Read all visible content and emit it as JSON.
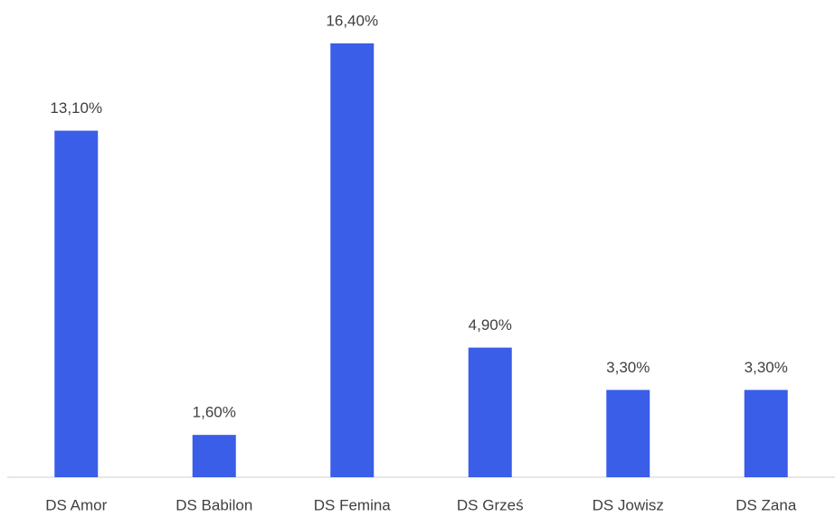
{
  "chart_data": {
    "type": "bar",
    "categories": [
      "DS Amor",
      "DS Babilon",
      "DS Femina",
      "DS Grześ",
      "DS Jowisz",
      "DS Zana"
    ],
    "values": [
      13.1,
      1.6,
      16.4,
      4.9,
      3.3,
      3.3
    ],
    "value_labels": [
      "13,10%",
      "1,60%",
      "16,40%",
      "4,90%",
      "3,30%",
      "3,30%"
    ],
    "color": "#3a5ee8"
  }
}
